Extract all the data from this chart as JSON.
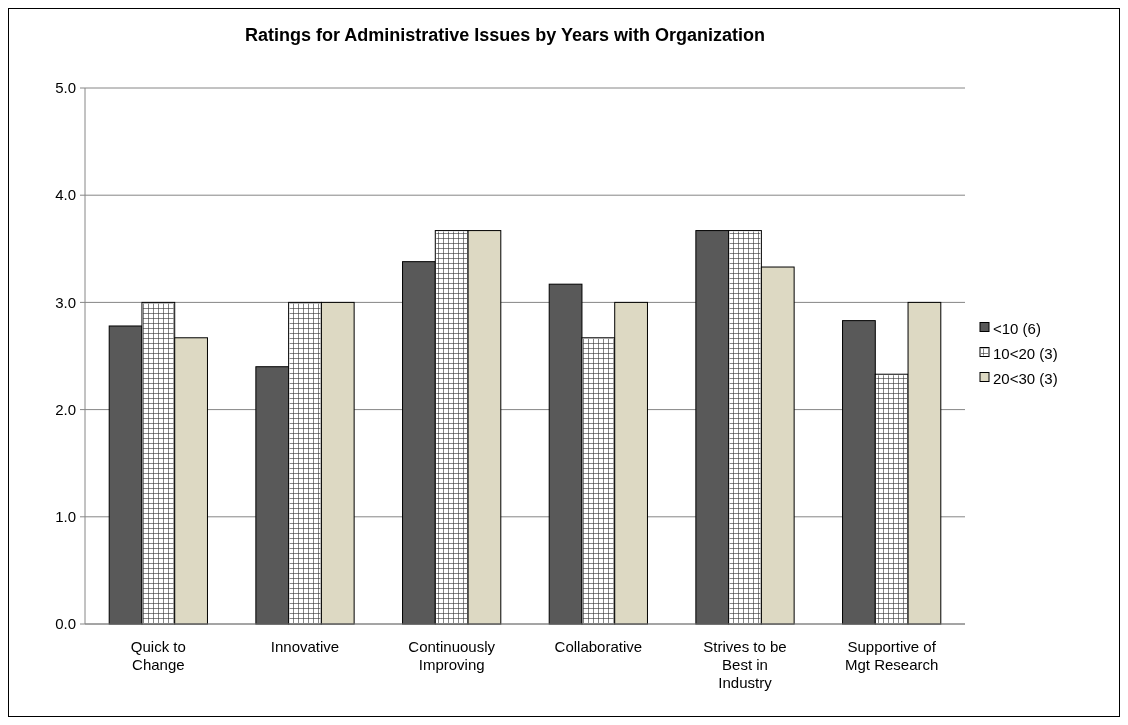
{
  "chart_data": {
    "type": "bar",
    "title": "Ratings for Administrative Issues by Years with Organization",
    "categories": [
      "Quick to Change",
      "Innovative",
      "Continuously Improving",
      "Collaborative",
      "Strives to be Best in Industry",
      "Supportive of Mgt Research"
    ],
    "series": [
      {
        "name": "<10 (6)",
        "color": "#595959",
        "values": [
          2.78,
          2.4,
          3.38,
          3.17,
          3.67,
          2.83
        ]
      },
      {
        "name": "10<20 (3)",
        "color": "#ffffff",
        "values": [
          3.0,
          3.0,
          3.67,
          2.67,
          3.67,
          2.33
        ]
      },
      {
        "name": "20<30 (3)",
        "color": "#ddd9c3",
        "values": [
          2.67,
          3.0,
          3.67,
          3.0,
          3.33,
          3.0
        ]
      }
    ],
    "ylim": [
      0,
      5
    ],
    "yticks": [
      {
        "value": 0,
        "label": "0.0"
      },
      {
        "value": 1,
        "label": "1.0"
      },
      {
        "value": 2,
        "label": "2.0"
      },
      {
        "value": 3,
        "label": "3.0"
      },
      {
        "value": 4,
        "label": "4.0"
      },
      {
        "value": 5,
        "label": "5.0"
      }
    ],
    "grid": "y",
    "legend": "right"
  }
}
